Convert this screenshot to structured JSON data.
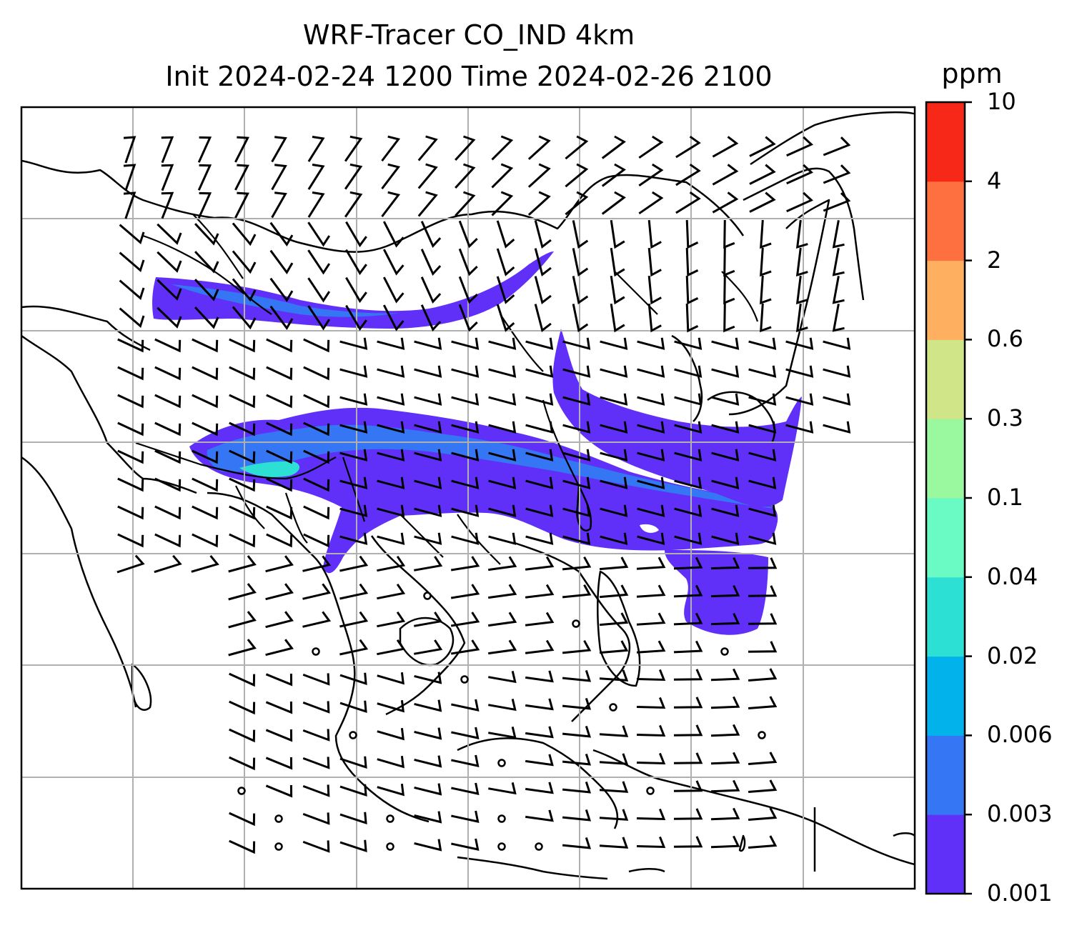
{
  "title": {
    "line1": "WRF-Tracer CO_IND 4km",
    "line2": "Init 2024-02-24 1200 Time 2024-02-26 2100"
  },
  "colorbar": {
    "unit": "ppm",
    "ticks": [
      "10",
      "4",
      "2",
      "0.6",
      "0.3",
      "0.1",
      "0.04",
      "0.02",
      "0.006",
      "0.003",
      "0.001"
    ],
    "colors": [
      "#6030f8",
      "#3476f4",
      "#02b2ea",
      "#2ce0d4",
      "#6afac4",
      "#9af89e",
      "#d0e488",
      "#feb060",
      "#fe7040",
      "#f82818"
    ]
  },
  "map": {
    "variable": "CO_IND tracer concentration",
    "overlay": "wind barbs",
    "features": [
      "coastlines",
      "country borders",
      "lat-lon gridlines"
    ]
  }
}
